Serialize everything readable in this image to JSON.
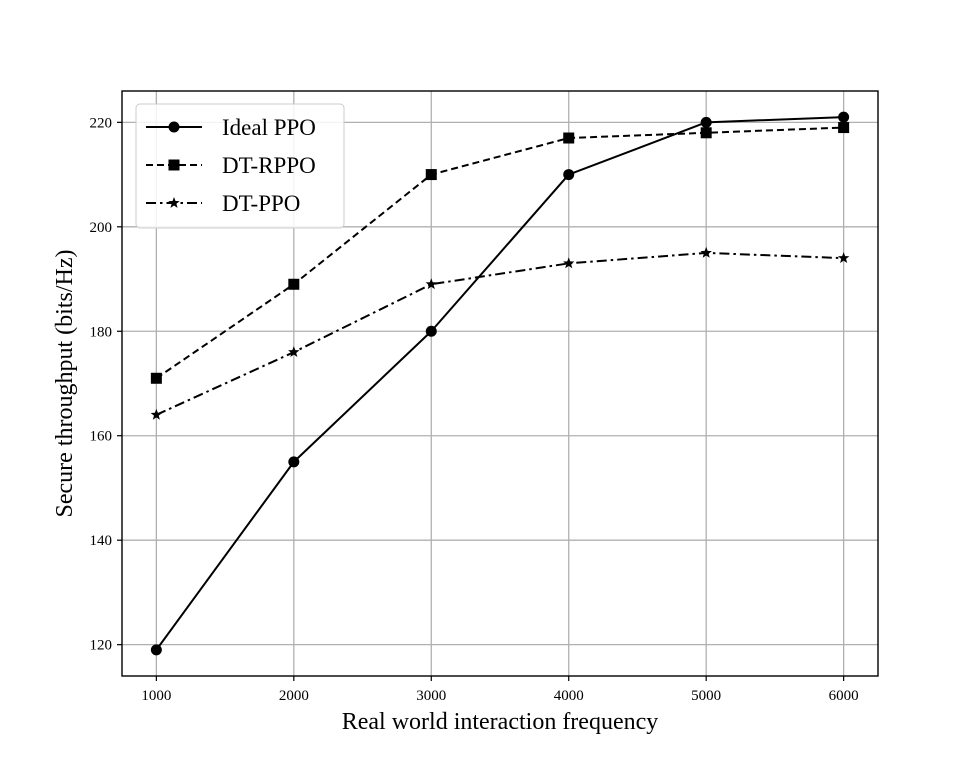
{
  "chart_data": {
    "type": "line",
    "title": "",
    "xlabel": "Real world interaction frequency",
    "ylabel": "Secure throughput (bits/Hz)",
    "x": [
      1000,
      2000,
      3000,
      4000,
      5000,
      6000
    ],
    "xticks": [
      "1000",
      "2000",
      "3000",
      "4000",
      "5000",
      "6000"
    ],
    "yticks": [
      "120",
      "140",
      "160",
      "180",
      "200",
      "220"
    ],
    "xlim": [
      750,
      6250
    ],
    "ylim": [
      114,
      226
    ],
    "grid": true,
    "legend_position": "top-left",
    "series": [
      {
        "name": "Ideal PPO",
        "values": [
          119,
          155,
          180,
          210,
          220,
          221
        ],
        "marker": "circle",
        "linestyle": "solid",
        "color": "#000000"
      },
      {
        "name": "DT-RPPO",
        "values": [
          171,
          189,
          210,
          217,
          218,
          219
        ],
        "marker": "square",
        "linestyle": "dashed",
        "color": "#000000"
      },
      {
        "name": "DT-PPO",
        "values": [
          164,
          176,
          189,
          193,
          195,
          194
        ],
        "marker": "star",
        "linestyle": "dashdot",
        "color": "#000000"
      }
    ]
  }
}
